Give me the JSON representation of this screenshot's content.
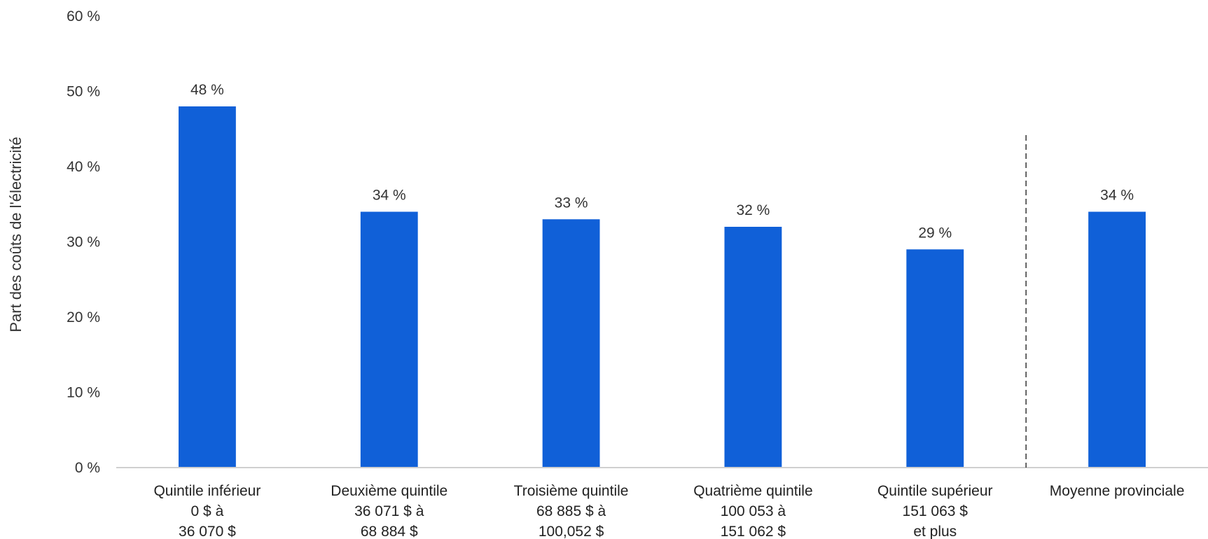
{
  "chart_data": {
    "type": "bar",
    "ylabel": "Part des coûts de l'électricité",
    "ylim": [
      0,
      60
    ],
    "yticks": [
      0,
      10,
      20,
      30,
      40,
      50,
      60
    ],
    "ytick_suffix": " %",
    "grid": false,
    "bar_color": "#1060D8",
    "categories": [
      [
        "Quintile inférieur",
        "0 $ à",
        "36 070 $"
      ],
      [
        "Deuxième quintile",
        "36 071 $ à",
        "68 884 $"
      ],
      [
        "Troisième quintile",
        "68 885 $ à",
        "100,052 $"
      ],
      [
        "Quatrième quintile",
        "100 053 à",
        "151 062 $"
      ],
      [
        "Quintile supérieur",
        "151 063 $",
        "et plus"
      ],
      [
        "Moyenne provinciale"
      ]
    ],
    "values": [
      48,
      34,
      33,
      32,
      29,
      34
    ],
    "data_labels": [
      "48 %",
      "34 %",
      "33 %",
      "32 %",
      "29 %",
      "34 %"
    ],
    "separator_before_category": 5
  }
}
